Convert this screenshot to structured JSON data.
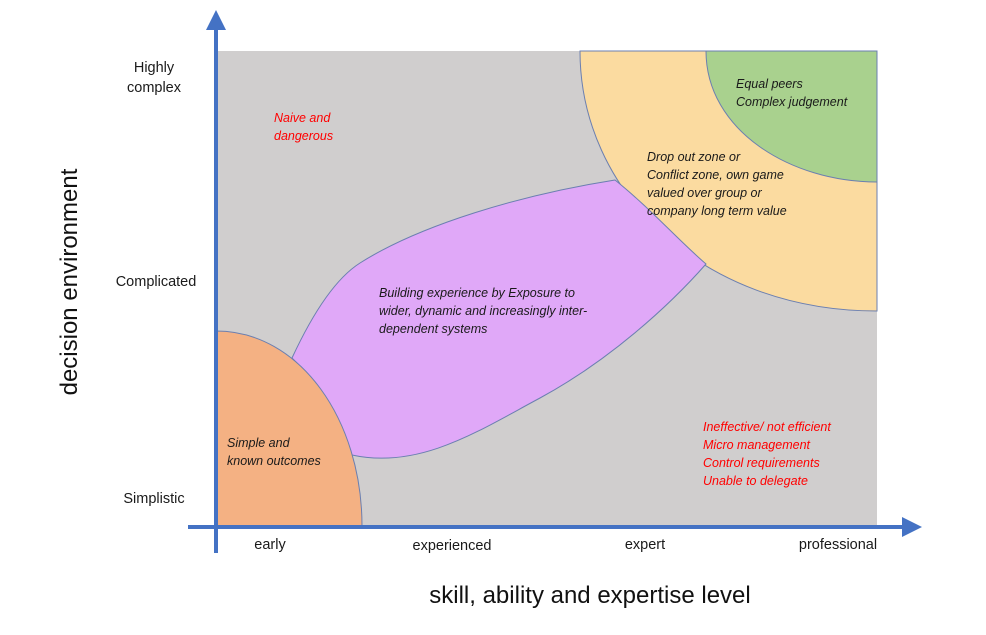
{
  "axes": {
    "x_title": "skill, ability and expertise level",
    "y_title": "decision environment",
    "x_ticks": [
      "early",
      "experienced",
      "expert",
      "professional"
    ],
    "y_ticks": [
      "Highly\ncomplex",
      "Complicated",
      "Simplistic"
    ]
  },
  "zones": {
    "naive": "Naive and\ndangerous",
    "simple": "Simple and\nknown outcomes",
    "building": "Building experience by Exposure to\nwider, dynamic and increasingly inter-\ndependent systems",
    "dropout": "Drop out zone or\nConflict zone, own game\nvalued over group or\ncompany long term value",
    "peers": "Equal peers\nComplex judgement",
    "ineffective": "Ineffective/ not efficient\nMicro management\nControl requirements\nUnable to delegate"
  },
  "colors": {
    "background_area": "#d0cece",
    "axis": "#4472c4",
    "simple_zone": "#f4b183",
    "building_zone": "#e0a8f8",
    "dropout_zone": "#fbdba0",
    "peers_zone": "#a9d18e",
    "warning_text": "#ff0000"
  }
}
